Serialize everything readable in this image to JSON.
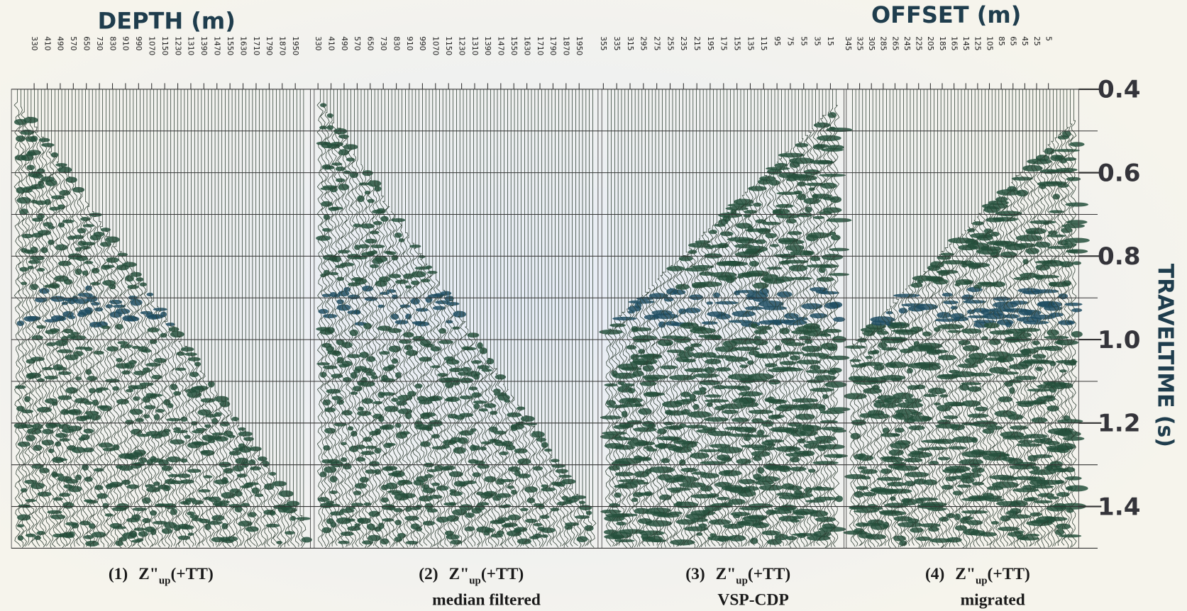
{
  "header": {
    "left_title": "DEPTH (m)",
    "right_title": "OFFSET (m)"
  },
  "panels": [
    {
      "trace_labels": [
        330,
        410,
        490,
        570,
        650,
        730,
        830,
        910,
        990,
        1070,
        1150,
        1230,
        1310,
        1390,
        1470,
        1550,
        1630,
        1710,
        1790,
        1870,
        1950
      ],
      "caption": {
        "number": "(1)",
        "symbol": "Z\"",
        "subscript": "up",
        "suffix": "(+TT)"
      }
    },
    {
      "trace_labels": [
        330,
        410,
        490,
        570,
        650,
        730,
        830,
        910,
        990,
        1070,
        1150,
        1230,
        1310,
        1390,
        1470,
        1550,
        1630,
        1710,
        1790,
        1870,
        1950
      ],
      "caption": {
        "number": "(2)",
        "symbol": "Z\"",
        "subscript": "up",
        "suffix": "(+TT)",
        "note": "median filtered"
      }
    },
    {
      "trace_labels": [
        355,
        335,
        315,
        295,
        275,
        255,
        235,
        215,
        195,
        175,
        155,
        135,
        115,
        95,
        75,
        55,
        35,
        15
      ],
      "caption": {
        "number": "(3)",
        "symbol": "Z\"",
        "subscript": "up",
        "suffix": "(+TT)",
        "note": "VSP-CDP"
      }
    },
    {
      "trace_labels": [
        345,
        325,
        305,
        285,
        265,
        245,
        225,
        205,
        185,
        165,
        145,
        125,
        105,
        85,
        65,
        45,
        25,
        5
      ],
      "caption": {
        "number": "(4)",
        "symbol": "Z\"",
        "subscript": "up",
        "suffix": "(+TT)",
        "note": "migrated"
      }
    }
  ],
  "time_axis": {
    "label": "TRAVELTIME (s)",
    "lim": [
      0.4,
      1.5
    ],
    "ticks": [
      0.4,
      0.6,
      0.8,
      {
        "value": 1,
        "label": "1.0"
      },
      1.2,
      1.4
    ],
    "gridlines": [
      0.4,
      0.5,
      0.6,
      0.7,
      0.8,
      0.9,
      1,
      1.1,
      1.2,
      1.3,
      1.4,
      1.5
    ]
  }
}
